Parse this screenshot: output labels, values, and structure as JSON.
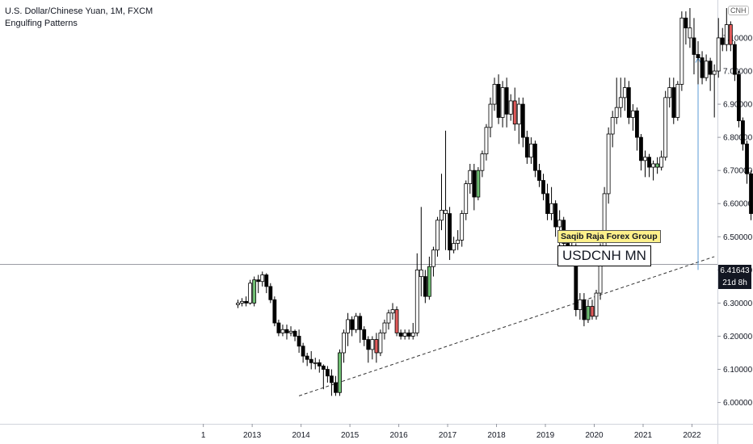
{
  "header": {
    "title": "U.S. Dollar/Chinese Yuan, 1M, FXCM",
    "subtitle": "Engulfing Patterns"
  },
  "symbol_badge": "CNH",
  "labels": {
    "author": "Saqib Raja Forex Group",
    "pair": "USDCNH MN"
  },
  "price_tag": {
    "price": "6.41643",
    "countdown": "21d 8h"
  },
  "colors": {
    "bull": "#ffffff",
    "bear": "#000000",
    "engulf_bull": "#6fbf73",
    "engulf_bear": "#e05a5a",
    "arrow": "#5b9bd5"
  },
  "chart_data": {
    "type": "candlestick",
    "ylim": [
      5.96,
      7.19
    ],
    "y_ticks": [
      "6.00000",
      "6.10000",
      "6.20000",
      "6.30000",
      "6.40000",
      "6.50000",
      "6.60000",
      "6.70000",
      "6.80000",
      "6.90000",
      "7.00000",
      "7.10000"
    ],
    "x_tick_labels": [
      "1",
      "2013",
      "2014",
      "2015",
      "2016",
      "2017",
      "2018",
      "2019",
      "2020",
      "2021",
      "2022"
    ],
    "x_tick_indices": [
      -8.5,
      3.5,
      15.5,
      27.5,
      39.5,
      51.5,
      63.5,
      75.5,
      87.5,
      99.5,
      111.5
    ],
    "last_price": 6.41643,
    "trendline": {
      "from": [
        15,
        6.02
      ],
      "to": [
        117,
        6.44
      ]
    },
    "projection_arrow": {
      "index": 113,
      "from": 6.4,
      "to": 7.04
    },
    "candles": [
      {
        "o": 6.295,
        "h": 6.31,
        "c": 6.3,
        "l": 6.285,
        "t": "bull"
      },
      {
        "o": 6.3,
        "h": 6.315,
        "c": 6.305,
        "l": 6.29,
        "t": "bull"
      },
      {
        "o": 6.305,
        "h": 6.32,
        "c": 6.3,
        "l": 6.29,
        "t": "bear"
      },
      {
        "o": 6.3,
        "h": 6.37,
        "c": 6.36,
        "l": 6.295,
        "t": "bull"
      },
      {
        "o": 6.3,
        "h": 6.38,
        "c": 6.37,
        "l": 6.29,
        "t": "engulf_bull"
      },
      {
        "o": 6.37,
        "h": 6.385,
        "c": 6.365,
        "l": 6.33,
        "t": "bear"
      },
      {
        "o": 6.365,
        "h": 6.395,
        "c": 6.385,
        "l": 6.35,
        "t": "bull"
      },
      {
        "o": 6.385,
        "h": 6.39,
        "c": 6.35,
        "l": 6.33,
        "t": "bear"
      },
      {
        "o": 6.35,
        "h": 6.36,
        "c": 6.31,
        "l": 6.3,
        "t": "bear"
      },
      {
        "o": 6.31,
        "h": 6.32,
        "c": 6.24,
        "l": 6.23,
        "t": "bear"
      },
      {
        "o": 6.24,
        "h": 6.25,
        "c": 6.21,
        "l": 6.2,
        "t": "bear"
      },
      {
        "o": 6.21,
        "h": 6.235,
        "c": 6.22,
        "l": 6.2,
        "t": "bull"
      },
      {
        "o": 6.22,
        "h": 6.235,
        "c": 6.21,
        "l": 6.19,
        "t": "bear"
      },
      {
        "o": 6.21,
        "h": 6.23,
        "c": 6.215,
        "l": 6.2,
        "t": "bull"
      },
      {
        "o": 6.215,
        "h": 6.22,
        "c": 6.2,
        "l": 6.185,
        "t": "bear"
      },
      {
        "o": 6.2,
        "h": 6.22,
        "c": 6.17,
        "l": 6.15,
        "t": "bear"
      },
      {
        "o": 6.17,
        "h": 6.18,
        "c": 6.14,
        "l": 6.12,
        "t": "bear"
      },
      {
        "o": 6.14,
        "h": 6.15,
        "c": 6.13,
        "l": 6.11,
        "t": "bear"
      },
      {
        "o": 6.13,
        "h": 6.155,
        "c": 6.12,
        "l": 6.1,
        "t": "bear"
      },
      {
        "o": 6.12,
        "h": 6.135,
        "c": 6.12,
        "l": 6.1,
        "t": "bull"
      },
      {
        "o": 6.12,
        "h": 6.13,
        "c": 6.11,
        "l": 6.09,
        "t": "bear"
      },
      {
        "o": 6.11,
        "h": 6.115,
        "c": 6.1,
        "l": 6.04,
        "t": "bear"
      },
      {
        "o": 6.1,
        "h": 6.11,
        "c": 6.08,
        "l": 6.06,
        "t": "bear"
      },
      {
        "o": 6.08,
        "h": 6.1,
        "c": 6.06,
        "l": 6.02,
        "t": "bear"
      },
      {
        "o": 6.06,
        "h": 6.08,
        "c": 6.03,
        "l": 6.02,
        "t": "bear"
      },
      {
        "o": 6.03,
        "h": 6.16,
        "c": 6.15,
        "l": 6.02,
        "t": "engulf_bull"
      },
      {
        "o": 6.15,
        "h": 6.22,
        "c": 6.21,
        "l": 6.12,
        "t": "bull"
      },
      {
        "o": 6.21,
        "h": 6.27,
        "c": 6.25,
        "l": 6.17,
        "t": "bull"
      },
      {
        "o": 6.25,
        "h": 6.26,
        "c": 6.22,
        "l": 6.2,
        "t": "bear"
      },
      {
        "o": 6.22,
        "h": 6.27,
        "c": 6.26,
        "l": 6.21,
        "t": "bull"
      },
      {
        "o": 6.26,
        "h": 6.27,
        "c": 6.22,
        "l": 6.18,
        "t": "bear"
      },
      {
        "o": 6.22,
        "h": 6.23,
        "c": 6.19,
        "l": 6.17,
        "t": "bear"
      },
      {
        "o": 6.19,
        "h": 6.2,
        "c": 6.16,
        "l": 6.12,
        "t": "bear"
      },
      {
        "o": 6.16,
        "h": 6.2,
        "c": 6.19,
        "l": 6.13,
        "t": "bull"
      },
      {
        "o": 6.19,
        "h": 6.21,
        "c": 6.15,
        "l": 6.12,
        "t": "engulf_bear"
      },
      {
        "o": 6.15,
        "h": 6.22,
        "c": 6.21,
        "l": 6.14,
        "t": "bull"
      },
      {
        "o": 6.21,
        "h": 6.25,
        "c": 6.24,
        "l": 6.19,
        "t": "bull"
      },
      {
        "o": 6.24,
        "h": 6.28,
        "c": 6.27,
        "l": 6.22,
        "t": "bull"
      },
      {
        "o": 6.27,
        "h": 6.3,
        "c": 6.28,
        "l": 6.25,
        "t": "bull"
      },
      {
        "o": 6.28,
        "h": 6.29,
        "c": 6.21,
        "l": 6.2,
        "t": "engulf_bear"
      },
      {
        "o": 6.21,
        "h": 6.22,
        "c": 6.2,
        "l": 6.19,
        "t": "bear"
      },
      {
        "o": 6.2,
        "h": 6.22,
        "c": 6.21,
        "l": 6.19,
        "t": "bull"
      },
      {
        "o": 6.21,
        "h": 6.22,
        "c": 6.2,
        "l": 6.19,
        "t": "bear"
      },
      {
        "o": 6.2,
        "h": 6.24,
        "c": 6.21,
        "l": 6.19,
        "t": "bull"
      },
      {
        "o": 6.21,
        "h": 6.45,
        "c": 6.4,
        "l": 6.2,
        "t": "bull"
      },
      {
        "o": 6.4,
        "h": 6.59,
        "c": 6.38,
        "l": 6.32,
        "t": "bull"
      },
      {
        "o": 6.38,
        "h": 6.4,
        "c": 6.32,
        "l": 6.3,
        "t": "bear"
      },
      {
        "o": 6.32,
        "h": 6.44,
        "c": 6.41,
        "l": 6.31,
        "t": "engulf_bull"
      },
      {
        "o": 6.41,
        "h": 6.47,
        "c": 6.46,
        "l": 6.38,
        "t": "bull"
      },
      {
        "o": 6.46,
        "h": 6.56,
        "c": 6.55,
        "l": 6.44,
        "t": "bull"
      },
      {
        "o": 6.55,
        "h": 6.69,
        "c": 6.58,
        "l": 6.52,
        "t": "bull"
      },
      {
        "o": 6.58,
        "h": 6.82,
        "c": 6.57,
        "l": 6.46,
        "t": "bull"
      },
      {
        "o": 6.57,
        "h": 6.59,
        "c": 6.46,
        "l": 6.43,
        "t": "bear"
      },
      {
        "o": 6.46,
        "h": 6.5,
        "c": 6.48,
        "l": 6.45,
        "t": "bull"
      },
      {
        "o": 6.48,
        "h": 6.52,
        "c": 6.49,
        "l": 6.46,
        "t": "bull"
      },
      {
        "o": 6.49,
        "h": 6.58,
        "c": 6.57,
        "l": 6.47,
        "t": "bull"
      },
      {
        "o": 6.57,
        "h": 6.67,
        "c": 6.66,
        "l": 6.55,
        "t": "bull"
      },
      {
        "o": 6.66,
        "h": 6.72,
        "c": 6.7,
        "l": 6.63,
        "t": "bull"
      },
      {
        "o": 6.7,
        "h": 6.72,
        "c": 6.62,
        "l": 6.58,
        "t": "bear"
      },
      {
        "o": 6.62,
        "h": 6.71,
        "c": 6.7,
        "l": 6.61,
        "t": "engulf_bull"
      },
      {
        "o": 6.7,
        "h": 6.76,
        "c": 6.75,
        "l": 6.68,
        "t": "bull"
      },
      {
        "o": 6.75,
        "h": 6.84,
        "c": 6.83,
        "l": 6.73,
        "t": "bull"
      },
      {
        "o": 6.83,
        "h": 6.92,
        "c": 6.9,
        "l": 6.8,
        "t": "bull"
      },
      {
        "o": 6.9,
        "h": 6.98,
        "c": 6.96,
        "l": 6.88,
        "t": "bull"
      },
      {
        "o": 6.96,
        "h": 6.99,
        "c": 6.86,
        "l": 6.84,
        "t": "bear"
      },
      {
        "o": 6.86,
        "h": 6.97,
        "c": 6.95,
        "l": 6.83,
        "t": "bull"
      },
      {
        "o": 6.95,
        "h": 6.98,
        "c": 6.87,
        "l": 6.83,
        "t": "bear"
      },
      {
        "o": 6.87,
        "h": 6.93,
        "c": 6.91,
        "l": 6.85,
        "t": "bull"
      },
      {
        "o": 6.91,
        "h": 6.95,
        "c": 6.84,
        "l": 6.82,
        "t": "engulf_bear"
      },
      {
        "o": 6.84,
        "h": 6.92,
        "c": 6.9,
        "l": 6.78,
        "t": "bull"
      },
      {
        "o": 6.9,
        "h": 6.92,
        "c": 6.8,
        "l": 6.77,
        "t": "bear"
      },
      {
        "o": 6.8,
        "h": 6.82,
        "c": 6.74,
        "l": 6.72,
        "t": "bear"
      },
      {
        "o": 6.74,
        "h": 6.8,
        "c": 6.78,
        "l": 6.72,
        "t": "bull"
      },
      {
        "o": 6.78,
        "h": 6.79,
        "c": 6.7,
        "l": 6.68,
        "t": "bear"
      },
      {
        "o": 6.7,
        "h": 6.72,
        "c": 6.67,
        "l": 6.65,
        "t": "bear"
      },
      {
        "o": 6.67,
        "h": 6.69,
        "c": 6.63,
        "l": 6.61,
        "t": "bear"
      },
      {
        "o": 6.63,
        "h": 6.66,
        "c": 6.57,
        "l": 6.55,
        "t": "bear"
      },
      {
        "o": 6.57,
        "h": 6.65,
        "c": 6.6,
        "l": 6.55,
        "t": "bull"
      },
      {
        "o": 6.6,
        "h": 6.61,
        "c": 6.53,
        "l": 6.5,
        "t": "bear"
      },
      {
        "o": 6.53,
        "h": 6.58,
        "c": 6.55,
        "l": 6.42,
        "t": "bull"
      },
      {
        "o": 6.55,
        "h": 6.56,
        "c": 6.48,
        "l": 6.46,
        "t": "bear"
      },
      {
        "o": 6.48,
        "h": 6.51,
        "c": 6.45,
        "l": 6.42,
        "t": "bear"
      },
      {
        "o": 6.45,
        "h": 6.49,
        "c": 6.47,
        "l": 6.42,
        "t": "bull"
      },
      {
        "o": 6.47,
        "h": 6.48,
        "c": 6.28,
        "l": 6.26,
        "t": "bear"
      },
      {
        "o": 6.28,
        "h": 6.33,
        "c": 6.31,
        "l": 6.25,
        "t": "bull"
      },
      {
        "o": 6.31,
        "h": 6.33,
        "c": 6.25,
        "l": 6.23,
        "t": "bear"
      },
      {
        "o": 6.25,
        "h": 6.31,
        "c": 6.29,
        "l": 6.24,
        "t": "engulf_bull"
      },
      {
        "o": 6.29,
        "h": 6.31,
        "c": 6.26,
        "l": 6.25,
        "t": "engulf_bear"
      },
      {
        "o": 6.26,
        "h": 6.34,
        "c": 6.33,
        "l": 6.25,
        "t": "bull"
      },
      {
        "o": 6.33,
        "h": 6.48,
        "c": 6.47,
        "l": 6.31,
        "t": "bull"
      },
      {
        "o": 6.47,
        "h": 6.65,
        "c": 6.63,
        "l": 6.44,
        "t": "bull"
      },
      {
        "o": 6.63,
        "h": 6.83,
        "c": 6.81,
        "l": 6.6,
        "t": "bull"
      },
      {
        "o": 6.81,
        "h": 6.88,
        "c": 6.86,
        "l": 6.77,
        "t": "bull"
      },
      {
        "o": 6.86,
        "h": 6.98,
        "c": 6.89,
        "l": 6.84,
        "t": "bull"
      },
      {
        "o": 6.89,
        "h": 6.98,
        "c": 6.92,
        "l": 6.86,
        "t": "bull"
      },
      {
        "o": 6.92,
        "h": 6.98,
        "c": 6.95,
        "l": 6.88,
        "t": "bull"
      },
      {
        "o": 6.95,
        "h": 6.97,
        "c": 6.86,
        "l": 6.84,
        "t": "bear"
      },
      {
        "o": 6.86,
        "h": 6.9,
        "c": 6.88,
        "l": 6.82,
        "t": "bull"
      },
      {
        "o": 6.88,
        "h": 6.89,
        "c": 6.8,
        "l": 6.76,
        "t": "bear"
      },
      {
        "o": 6.8,
        "h": 6.81,
        "c": 6.73,
        "l": 6.7,
        "t": "bear"
      },
      {
        "o": 6.73,
        "h": 6.76,
        "c": 6.74,
        "l": 6.68,
        "t": "bull"
      },
      {
        "o": 6.74,
        "h": 6.75,
        "c": 6.71,
        "l": 6.68,
        "t": "bear"
      },
      {
        "o": 6.71,
        "h": 6.73,
        "c": 6.72,
        "l": 6.67,
        "t": "bull"
      },
      {
        "o": 6.72,
        "h": 6.74,
        "c": 6.71,
        "l": 6.69,
        "t": "engulf_bull"
      },
      {
        "o": 6.71,
        "h": 6.76,
        "c": 6.74,
        "l": 6.7,
        "t": "bull"
      },
      {
        "o": 6.74,
        "h": 6.94,
        "c": 6.92,
        "l": 6.73,
        "t": "bull"
      },
      {
        "o": 6.92,
        "h": 6.98,
        "c": 6.95,
        "l": 6.89,
        "t": "bull"
      },
      {
        "o": 6.95,
        "h": 6.98,
        "c": 6.86,
        "l": 6.84,
        "t": "bear"
      },
      {
        "o": 6.86,
        "h": 6.97,
        "c": 6.96,
        "l": 6.85,
        "t": "bull"
      },
      {
        "o": 6.96,
        "h": 7.18,
        "c": 7.16,
        "l": 6.94,
        "t": "bull"
      },
      {
        "o": 7.16,
        "h": 7.18,
        "c": 7.13,
        "l": 7.08,
        "t": "bear"
      },
      {
        "o": 7.13,
        "h": 7.19,
        "c": 7.1,
        "l": 7.07,
        "t": "bull"
      },
      {
        "o": 7.1,
        "h": 7.16,
        "c": 7.05,
        "l": 6.99,
        "t": "bear"
      },
      {
        "o": 7.05,
        "h": 7.09,
        "c": 7.04,
        "l": 6.96,
        "t": "bear"
      },
      {
        "o": 7.04,
        "h": 7.06,
        "c": 6.98,
        "l": 6.96,
        "t": "bear"
      },
      {
        "o": 6.98,
        "h": 7.05,
        "c": 7.03,
        "l": 6.97,
        "t": "bull"
      },
      {
        "o": 7.03,
        "h": 7.04,
        "c": 6.99,
        "l": 6.94,
        "t": "bear"
      },
      {
        "o": 6.99,
        "h": 7.02,
        "c": 7.0,
        "l": 6.86,
        "t": "bull"
      },
      {
        "o": 7.0,
        "h": 7.16,
        "c": 7.1,
        "l": 6.98,
        "t": "bull"
      },
      {
        "o": 7.1,
        "h": 7.13,
        "c": 7.08,
        "l": 7.06,
        "t": "bear"
      },
      {
        "o": 7.08,
        "h": 7.19,
        "c": 7.14,
        "l": 7.06,
        "t": "bull"
      },
      {
        "o": 7.14,
        "h": 7.15,
        "c": 7.08,
        "l": 7.06,
        "t": "engulf_bear"
      },
      {
        "o": 7.08,
        "h": 7.09,
        "c": 6.99,
        "l": 6.97,
        "t": "bear"
      },
      {
        "o": 6.99,
        "h": 7.0,
        "c": 6.85,
        "l": 6.83,
        "t": "bear"
      },
      {
        "o": 6.85,
        "h": 6.86,
        "c": 6.78,
        "l": 6.76,
        "t": "bear"
      },
      {
        "o": 6.78,
        "h": 6.79,
        "c": 6.69,
        "l": 6.66,
        "t": "bear"
      },
      {
        "o": 6.69,
        "h": 6.7,
        "c": 6.57,
        "l": 6.55,
        "t": "bear"
      },
      {
        "o": 6.57,
        "h": 6.58,
        "c": 6.52,
        "l": 6.5,
        "t": "bear"
      },
      {
        "o": 6.52,
        "h": 6.53,
        "c": 6.46,
        "l": 6.41,
        "t": "bear"
      },
      {
        "o": 6.46,
        "h": 6.49,
        "c": 6.47,
        "l": 6.42,
        "t": "bull"
      },
      {
        "o": 6.47,
        "h": 6.58,
        "c": 6.5,
        "l": 6.45,
        "t": "bull"
      },
      {
        "o": 6.5,
        "h": 6.59,
        "c": 6.55,
        "l": 6.46,
        "t": "bull"
      },
      {
        "o": 6.55,
        "h": 6.57,
        "c": 6.46,
        "l": 6.44,
        "t": "engulf_bear"
      },
      {
        "o": 6.46,
        "h": 6.48,
        "c": 6.44,
        "l": 6.42,
        "t": "bear"
      },
      {
        "o": 6.44,
        "h": 6.45,
        "c": 6.41,
        "l": 6.4,
        "t": "bear"
      }
    ]
  }
}
